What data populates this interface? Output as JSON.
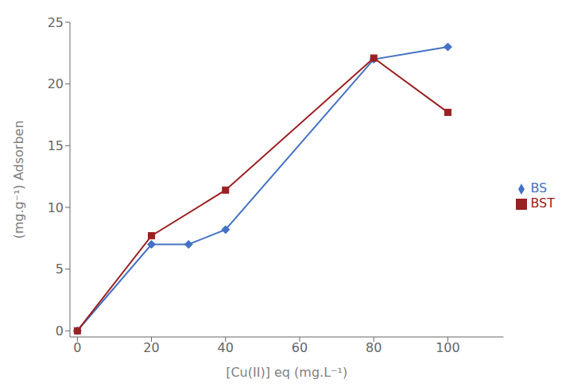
{
  "chart_data": {
    "type": "line",
    "xlabel": "[Cu(II)] eq (mg.L⁻¹)",
    "ylabel": "(mg.g⁻¹) Adsorben",
    "xlim": [
      -2,
      115
    ],
    "ylim": [
      -0.5,
      25
    ],
    "xticks": [
      0,
      20,
      40,
      60,
      80,
      100
    ],
    "yticks": [
      0,
      5,
      10,
      15,
      20,
      25
    ],
    "grid": false,
    "legend": "right",
    "series": [
      {
        "name": "BS",
        "color": "#4472C4",
        "marker": "diamond",
        "x": [
          0,
          20,
          30,
          40,
          80,
          100
        ],
        "values": [
          0,
          7.0,
          7.0,
          8.2,
          22.0,
          23.0
        ]
      },
      {
        "name": "BST",
        "color": "#9B2020",
        "marker": "square",
        "x": [
          0,
          20,
          40,
          80,
          100
        ],
        "values": [
          0,
          7.7,
          11.4,
          22.1,
          17.7
        ]
      }
    ]
  }
}
